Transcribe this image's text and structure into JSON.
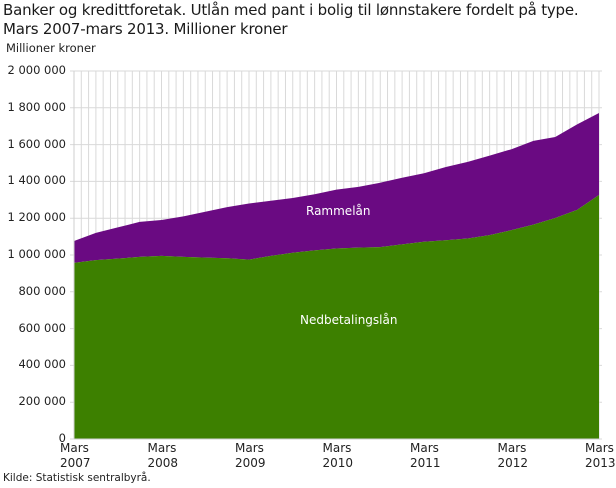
{
  "title_line1": "Banker og kredittforetak. Utlån med pant i bolig til lønnstakere fordelt på type.",
  "title_line2": "Mars 2007-mars 2013. Millioner kroner",
  "source": "Kilde: Statistisk sentralbyrå.",
  "colors": {
    "rammelan": "#6a0a82",
    "nedbetalingslan": "#3d8000",
    "grid": "#d9d9d9",
    "axis": "#cccccc"
  },
  "chart_data": {
    "type": "area",
    "stacked": true,
    "title": "Banker og kredittforetak. Utlån med pant i bolig til lønnstakere fordelt på type. Mars 2007-mars 2013. Millioner kroner",
    "xlabel": "",
    "ylabel": "Millioner kroner",
    "ylim": [
      0,
      2000000
    ],
    "grid": true,
    "legend_position": "inline-labels",
    "y_ticks": [
      "0",
      "200 000",
      "400 000",
      "600 000",
      "800 000",
      "1 000 000",
      "1 200 000",
      "1 400 000",
      "1 600 000",
      "1 800 000",
      "2 000 000"
    ],
    "x_tick_labels": [
      {
        "line1": "Mars",
        "line2": "2007"
      },
      {
        "line1": "Mars",
        "line2": "2008"
      },
      {
        "line1": "Mars",
        "line2": "2009"
      },
      {
        "line1": "Mars",
        "line2": "2010"
      },
      {
        "line1": "Mars",
        "line2": "2011"
      },
      {
        "line1": "Mars",
        "line2": "2012"
      },
      {
        "line1": "Mars",
        "line2": "2013"
      }
    ],
    "x": [
      "2007Q1",
      "2007Q2",
      "2007Q3",
      "2007Q4",
      "2008Q1",
      "2008Q2",
      "2008Q3",
      "2008Q4",
      "2009Q1",
      "2009Q2",
      "2009Q3",
      "2009Q4",
      "2010Q1",
      "2010Q2",
      "2010Q3",
      "2010Q4",
      "2011Q1",
      "2011Q2",
      "2011Q3",
      "2011Q4",
      "2012Q1",
      "2012Q2",
      "2012Q3",
      "2012Q4",
      "2013Q1"
    ],
    "series": [
      {
        "name": "Nedbetalingslån",
        "values": [
          957000,
          972000,
          980000,
          990000,
          995000,
          990000,
          986000,
          982000,
          975000,
          995000,
          1012000,
          1025000,
          1035000,
          1040000,
          1043000,
          1058000,
          1072000,
          1080000,
          1090000,
          1108000,
          1135000,
          1165000,
          1201000,
          1245000,
          1326000
        ]
      },
      {
        "name": "Rammelån",
        "values": [
          119000,
          148000,
          170000,
          190000,
          195000,
          220000,
          249000,
          278000,
          305000,
          300000,
          298000,
          305000,
          320000,
          330000,
          350000,
          362000,
          372000,
          398000,
          416000,
          432000,
          440000,
          455000,
          440000,
          465000,
          446000
        ]
      }
    ],
    "totals": [
      1076000,
      1120000,
      1150000,
      1180000,
      1190000,
      1210000,
      1235000,
      1260000,
      1280000,
      1295000,
      1310000,
      1330000,
      1355000,
      1370000,
      1393000,
      1420000,
      1444000,
      1478000,
      1506000,
      1540000,
      1575000,
      1620000,
      1641000,
      1710000,
      1772000
    ],
    "annotations": [
      {
        "text": "Rammelån",
        "series": "Rammelån"
      },
      {
        "text": "Nedbetalingslån",
        "series": "Nedbetalingslån"
      }
    ]
  }
}
